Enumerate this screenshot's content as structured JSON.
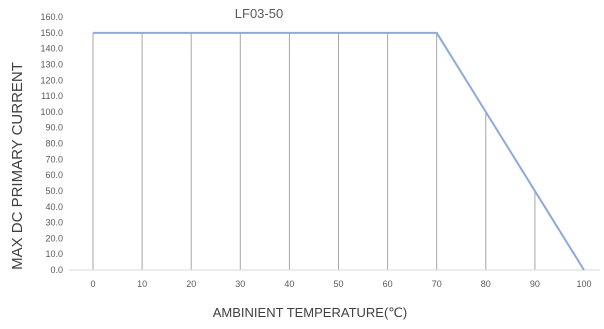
{
  "chart_data": {
    "type": "line",
    "title": "LF03-50",
    "xlabel": "AMBINIENT TEMPERATURE(℃)",
    "ylabel": "MAX DC PRIMARY CURRENT",
    "x_ticks": [
      "0",
      "10",
      "20",
      "30",
      "40",
      "50",
      "60",
      "70",
      "80",
      "90",
      "100"
    ],
    "y_ticks": [
      "0.0",
      "10.0",
      "20.0",
      "30.0",
      "40.0",
      "50.0",
      "60.0",
      "70.0",
      "80.0",
      "90.0",
      "100.0",
      "110.0",
      "120.0",
      "130.0",
      "140.0",
      "150.0",
      "160.0"
    ],
    "xlim": [
      0,
      100
    ],
    "ylim": [
      0,
      160
    ],
    "grid": "vertical drop lines",
    "legend": "none",
    "series": [
      {
        "x": [
          0,
          10,
          20,
          30,
          40,
          50,
          60,
          70,
          80,
          90,
          100
        ],
        "values": [
          150,
          150,
          150,
          150,
          150,
          150,
          150,
          150,
          100,
          50,
          0
        ],
        "color": "#8EA9DB"
      }
    ],
    "colors": {
      "line": "#8EA9DB",
      "drop_lines": "#A6A6A6",
      "axis": "#D9D9D9",
      "text": "#595959"
    }
  }
}
